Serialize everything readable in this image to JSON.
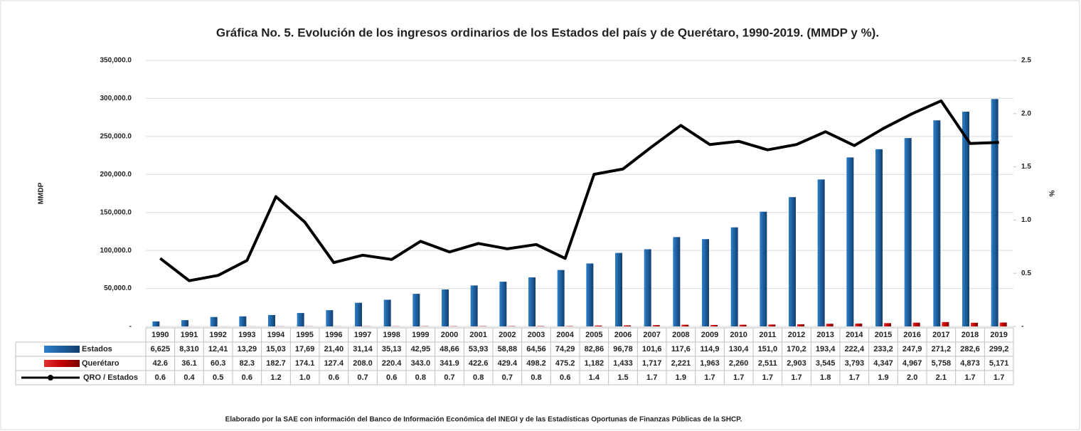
{
  "chart_data": {
    "type": "bar_line_table",
    "title": "Gráfica No. 5. Evolución de los ingresos ordinarios de los Estados del país y de Querétaro, 1990-2019. (MMDP y %).",
    "ylabel": "MMDP",
    "y2label": "%",
    "note": "Elaborado por la SAE con información del Banco de Información Económica del INEGI y de las Estadísticas Oportunas de Finanzas Públicas de la SHCP.",
    "categories": [
      "1990",
      "1991",
      "1992",
      "1993",
      "1994",
      "1995",
      "1996",
      "1997",
      "1998",
      "1999",
      "2000",
      "2001",
      "2002",
      "2003",
      "2004",
      "2005",
      "2006",
      "2007",
      "2008",
      "2009",
      "2010",
      "2011",
      "2012",
      "2013",
      "2014",
      "2015",
      "2016",
      "2017",
      "2018",
      "2019"
    ],
    "ylim": [
      0,
      350000
    ],
    "yticks": [
      {
        "value": 0,
        "label": "-"
      },
      {
        "value": 50000,
        "label": "50,000.0"
      },
      {
        "value": 100000,
        "label": "100,000.0"
      },
      {
        "value": 150000,
        "label": "150,000.0"
      },
      {
        "value": 200000,
        "label": "200,000.0"
      },
      {
        "value": 250000,
        "label": "250,000.0"
      },
      {
        "value": 300000,
        "label": "300,000.0"
      },
      {
        "value": 350000,
        "label": "350,000.0"
      }
    ],
    "y2lim": [
      0,
      2.5
    ],
    "y2ticks": [
      {
        "value": 0,
        "label": "-"
      },
      0.5,
      {
        "value": 1,
        "label": "1.0"
      },
      1.5,
      {
        "value": 2,
        "label": "2.0"
      },
      2.5
    ],
    "grid": true,
    "series": [
      {
        "name": "Estados",
        "type": "bar",
        "color": "#1f5f9e",
        "values": [
          6625,
          8310,
          12410,
          13290,
          15030,
          17690,
          21400,
          31140,
          35130,
          42950,
          48660,
          53930,
          58880,
          64560,
          74290,
          82860,
          96780,
          101600,
          117600,
          114900,
          130400,
          151000,
          170200,
          193400,
          222400,
          233200,
          247900,
          271200,
          282600,
          299200
        ],
        "value_labels": [
          "6,625",
          "8,310",
          "12,41",
          "13,29",
          "15,03",
          "17,69",
          "21,40",
          "31,14",
          "35,13",
          "42,95",
          "48,66",
          "53,93",
          "58,88",
          "64,56",
          "74,29",
          "82,86",
          "96,78",
          "101,6",
          "117,6",
          "114,9",
          "130,4",
          "151,0",
          "170,2",
          "193,4",
          "222,4",
          "233,2",
          "247,9",
          "271,2",
          "282,6",
          "299,2"
        ]
      },
      {
        "name": "Querétaro",
        "type": "bar",
        "color": "#c00000",
        "values": [
          42.6,
          36.1,
          60.3,
          82.3,
          182.7,
          174.1,
          127.4,
          208.0,
          220.4,
          343.0,
          341.9,
          422.6,
          429.4,
          498.2,
          475.2,
          1182,
          1433,
          1717,
          2221,
          1963,
          2260,
          2511,
          2903,
          3545,
          3793,
          4347,
          4967,
          5758,
          4873,
          5171
        ],
        "value_labels": [
          "42.6",
          "36.1",
          "60.3",
          "82.3",
          "182.7",
          "174.1",
          "127.4",
          "208.0",
          "220.4",
          "343.0",
          "341.9",
          "422.6",
          "429.4",
          "498.2",
          "475.2",
          "1,182",
          "1,433",
          "1,717",
          "2,221",
          "1,963",
          "2,260",
          "2,511",
          "2,903",
          "3,545",
          "3,793",
          "4,347",
          "4,967",
          "5,758",
          "4,873",
          "5,171"
        ]
      },
      {
        "name": "QRO / Estados",
        "type": "line",
        "axis": "y2",
        "color": "#000000",
        "values": [
          0.64,
          0.43,
          0.48,
          0.62,
          1.22,
          0.98,
          0.6,
          0.67,
          0.63,
          0.8,
          0.7,
          0.78,
          0.73,
          0.77,
          0.64,
          1.43,
          1.48,
          1.69,
          1.89,
          1.71,
          1.74,
          1.66,
          1.71,
          1.83,
          1.7,
          1.86,
          2.0,
          2.12,
          1.72,
          1.73
        ],
        "value_labels": [
          "0.6",
          "0.4",
          "0.5",
          "0.6",
          "1.2",
          "1.0",
          "0.6",
          "0.7",
          "0.6",
          "0.8",
          "0.7",
          "0.8",
          "0.7",
          "0.8",
          "0.6",
          "1.4",
          "1.5",
          "1.7",
          "1.9",
          "1.7",
          "1.7",
          "1.7",
          "1.7",
          "1.8",
          "1.7",
          "1.9",
          "2.0",
          "2.1",
          "1.7",
          "1.7"
        ]
      }
    ]
  }
}
